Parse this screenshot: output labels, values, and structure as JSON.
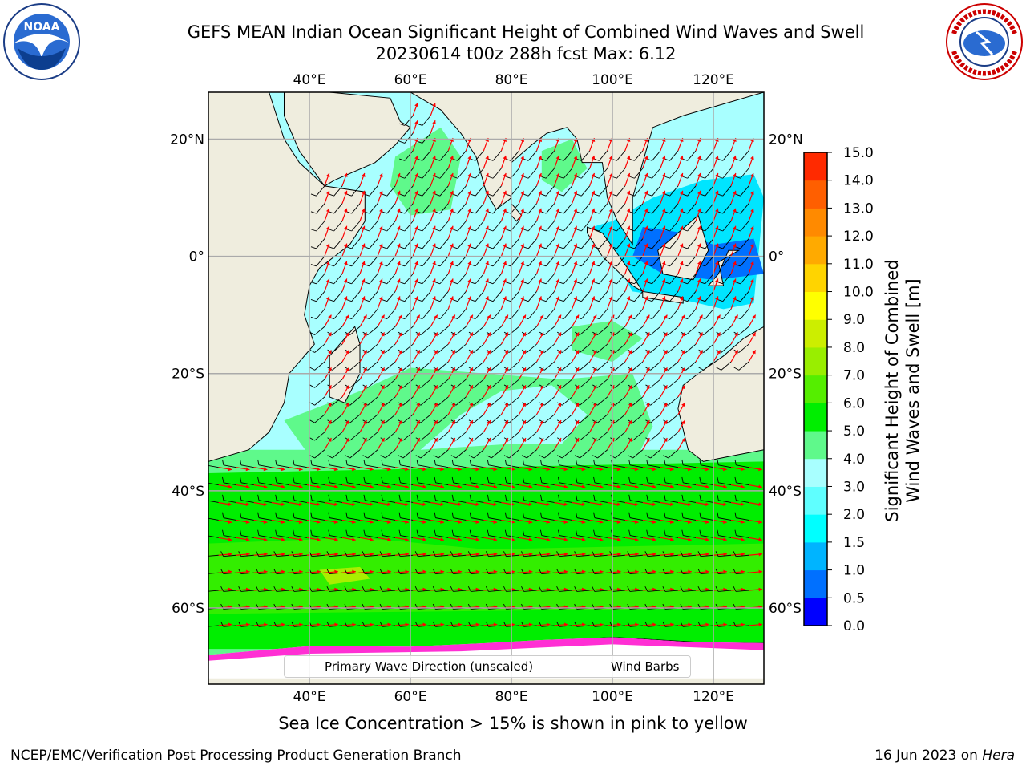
{
  "title": {
    "line1": "GEFS MEAN Indian Ocean Significant Height of Combined Wind Waves and Swell",
    "line2": "20230614 t00z 288h fcst   Max: 6.12"
  },
  "logos": {
    "left": "noaa-logo",
    "left_text": "NOAA",
    "left_ring_text": "NATIONAL OCEANIC AND ATMOSPHERIC ADMINISTRATION · U.S. DEPARTMENT OF COMMERCE",
    "right": "nws-logo",
    "right_ring_text": "NATIONAL WEATHER SERVICE"
  },
  "map": {
    "lon_ticks": [
      "40°E",
      "60°E",
      "80°E",
      "100°E",
      "120°E"
    ],
    "lat_ticks_left": [
      "20°N",
      "0°",
      "20°S",
      "40°S",
      "60°S"
    ],
    "lat_ticks_right": [
      "20°N",
      "0°",
      "20°S",
      "40°S",
      "60°S"
    ],
    "lon_values": [
      40,
      60,
      80,
      100,
      120
    ],
    "lat_values": [
      20,
      0,
      -20,
      -40,
      -60
    ],
    "lon_range": [
      20,
      130
    ],
    "lat_range": [
      -73,
      28
    ],
    "grid": true,
    "colors": {
      "land": "#efedde",
      "ocean_low": "#00e5ff",
      "ocean_mid": "#a8ffff",
      "ocean_high": "#5ff98b",
      "green": "#00ee00",
      "ice_white": "#ffffff",
      "ice_pink": "#ff2fd4",
      "wave_arrow": "#ff0000",
      "wind_barb": "#000000"
    }
  },
  "legend": {
    "items": [
      {
        "label": "Primary Wave Direction (unscaled)",
        "color": "#ff0000"
      },
      {
        "label": "Wind Barbs",
        "color": "#000000"
      }
    ],
    "placement": "bottom-center"
  },
  "colorbar": {
    "title_line1": "Significant Height of Combined",
    "title_line2": "Wind Waves and Swell [m]",
    "ticks": [
      "0.0",
      "0.5",
      "1.0",
      "1.5",
      "2.0",
      "3.0",
      "4.0",
      "5.0",
      "6.0",
      "7.0",
      "8.0",
      "9.0",
      "10.0",
      "11.0",
      "12.0",
      "13.0",
      "14.0",
      "15.0"
    ],
    "colors": [
      "#0000ff",
      "#0070ff",
      "#00b4ff",
      "#00ffff",
      "#5fffff",
      "#a8ffff",
      "#5ff98b",
      "#00ee00",
      "#55ee00",
      "#99ee00",
      "#ccee00",
      "#ffff00",
      "#ffd400",
      "#ffaa00",
      "#ff8a00",
      "#ff5f00",
      "#ff2a00",
      "#ff0000"
    ]
  },
  "notes": {
    "ice": "Sea Ice Concentration > 15% is shown in pink to yellow"
  },
  "footer": {
    "left": "NCEP/EMC/Verification Post Processing Product Generation Branch",
    "date": "16 Jun 2023 on ",
    "host": "Hera"
  }
}
